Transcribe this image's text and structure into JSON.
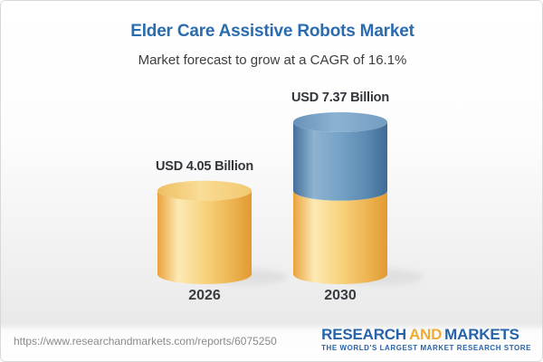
{
  "header": {
    "title": "Elder Care Assistive Robots Market",
    "subtitle": "Market forecast to grow at a CAGR of 16.1%"
  },
  "chart_data": {
    "type": "bar",
    "subtype": "3d-cylinder",
    "categories": [
      "2026",
      "2030"
    ],
    "values": [
      4.05,
      7.37
    ],
    "data_labels": [
      "USD 4.05 Billion",
      "USD 7.37 Billion"
    ],
    "unit": "USD Billion",
    "cagr_percent": 16.1,
    "ylim": [
      0,
      7.37
    ],
    "grid": false,
    "legend": "none",
    "colors": {
      "base_segment_yellow": "#f5c96b",
      "growth_segment_blue": "#6f9ac2",
      "value_label": "#31363b",
      "title_blue": "#2a6cae"
    },
    "note": "2030 cylinder is stacked: yellow base equal to 2026 value with blue growth segment on top"
  },
  "footer": {
    "url": "https://www.researchandmarkets.com/reports/6075250",
    "logo": {
      "research": "RESEARCH",
      "and": "AND",
      "markets": "MARKETS",
      "tagline": "THE WORLD'S LARGEST MARKET RESEARCH STORE",
      "blue": "#2763a8",
      "gold": "#efac2e"
    }
  }
}
